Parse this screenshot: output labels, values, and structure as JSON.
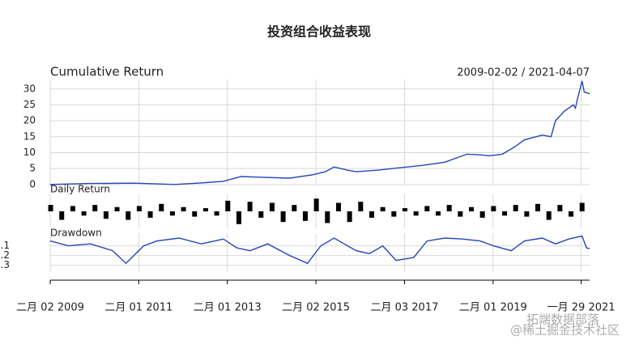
{
  "title": "投资组合收益表现",
  "watermark": [
    "拓端数据部落",
    "@稀土掘金技术社区"
  ],
  "chart_data": [
    {
      "type": "line",
      "title": "Cumulative Return",
      "date_range": "2009-02-02 / 2021-04-07",
      "color": "#2446b8",
      "xlim": [
        2009.09,
        2021.27
      ],
      "ylim": [
        -0.3,
        33
      ],
      "yticks": [
        0,
        5,
        10,
        15,
        20,
        25,
        30
      ],
      "grid": true,
      "x": [
        2009.09,
        2010,
        2011,
        2011.9,
        2012.5,
        2013,
        2013.4,
        2013.8,
        2014.5,
        2015,
        2015.3,
        2015.5,
        2015.8,
        2016,
        2016.5,
        2016.8,
        2017.5,
        2018,
        2018.5,
        2018.8,
        2019,
        2019.3,
        2019.6,
        2019.8,
        2020.2,
        2020.4,
        2020.5,
        2020.7,
        2020.9,
        2020.95,
        2021,
        2021.1,
        2021.15,
        2021.27
      ],
      "values": [
        0,
        0.3,
        0.4,
        0,
        0.5,
        1,
        2.5,
        2.3,
        2,
        3,
        4,
        5.5,
        4.5,
        4,
        4.5,
        5,
        6,
        7,
        9.5,
        9.3,
        9,
        9.5,
        12,
        14,
        15.5,
        15,
        20,
        23,
        25,
        24,
        27,
        32.5,
        29,
        28.5
      ]
    },
    {
      "type": "bar",
      "title": "Daily Return",
      "color": "#000000",
      "xlim": [
        2009.09,
        2021.27
      ],
      "ylim": [
        -0.08,
        0.08
      ],
      "x": [
        2009.1,
        2009.35,
        2009.6,
        2009.85,
        2010.1,
        2010.35,
        2010.6,
        2010.85,
        2011.1,
        2011.35,
        2011.6,
        2011.85,
        2012.1,
        2012.35,
        2012.6,
        2012.85,
        2013.1,
        2013.35,
        2013.6,
        2013.85,
        2014.1,
        2014.35,
        2014.6,
        2014.85,
        2015.1,
        2015.35,
        2015.6,
        2015.85,
        2016.1,
        2016.35,
        2016.6,
        2016.85,
        2017.1,
        2017.35,
        2017.6,
        2017.85,
        2018.1,
        2018.35,
        2018.6,
        2018.85,
        2019.1,
        2019.35,
        2019.6,
        2019.85,
        2020.1,
        2020.35,
        2020.6,
        2020.85,
        2021.1
      ],
      "values": [
        0.03,
        -0.04,
        0.025,
        -0.02,
        0.03,
        -0.035,
        0.02,
        -0.04,
        0.025,
        -0.03,
        0.035,
        -0.02,
        0.02,
        -0.025,
        0.015,
        -0.02,
        0.05,
        -0.06,
        0.045,
        -0.03,
        0.04,
        -0.05,
        0.03,
        -0.045,
        0.06,
        -0.055,
        0.04,
        -0.05,
        0.045,
        -0.03,
        0.02,
        -0.025,
        0.015,
        -0.02,
        0.025,
        -0.02,
        0.03,
        -0.025,
        0.02,
        -0.03,
        0.025,
        -0.02,
        0.03,
        -0.025,
        0.035,
        -0.04,
        0.03,
        -0.025,
        0.04
      ]
    },
    {
      "type": "line",
      "title": "Drawdown",
      "color": "#2446b8",
      "xlim": [
        2009.09,
        2021.27
      ],
      "ylim": [
        -0.37,
        0.03
      ],
      "grid": true,
      "yticks": [
        {
          "value": -0.1,
          "label": "-.1"
        },
        {
          "value": -0.2,
          "label": "-.2"
        },
        {
          "value": -0.3,
          "label": "-.3"
        }
      ],
      "xticks": [
        {
          "value": 2009.09,
          "label": "二月 02 2009"
        },
        {
          "value": 2011.09,
          "label": "二月 01 2011"
        },
        {
          "value": 2013.09,
          "label": "二月 01 2013"
        },
        {
          "value": 2015.09,
          "label": "二月 02 2015"
        },
        {
          "value": 2017.09,
          "label": "二月 03 2017"
        },
        {
          "value": 2019.09,
          "label": "二月 01 2019"
        },
        {
          "value": 2021.08,
          "label": "一月 29 2021"
        }
      ],
      "x": [
        2009.09,
        2009.5,
        2010,
        2010.5,
        2010.8,
        2011.2,
        2011.5,
        2012,
        2012.5,
        2013,
        2013.3,
        2013.6,
        2014,
        2014.5,
        2014.9,
        2015.2,
        2015.5,
        2016,
        2016.3,
        2016.6,
        2016.9,
        2017.3,
        2017.6,
        2018,
        2018.4,
        2018.8,
        2019.1,
        2019.5,
        2019.8,
        2020.2,
        2020.5,
        2020.8,
        2021.1,
        2021.2,
        2021.27
      ],
      "values": [
        -0.05,
        -0.1,
        -0.08,
        -0.15,
        -0.28,
        -0.1,
        -0.05,
        -0.02,
        -0.08,
        -0.03,
        -0.12,
        -0.15,
        -0.08,
        -0.2,
        -0.28,
        -0.1,
        -0.02,
        -0.15,
        -0.18,
        -0.1,
        -0.25,
        -0.22,
        -0.05,
        -0.02,
        -0.03,
        -0.05,
        -0.1,
        -0.15,
        -0.05,
        -0.02,
        -0.08,
        -0.03,
        0,
        -0.12,
        -0.13
      ]
    }
  ]
}
